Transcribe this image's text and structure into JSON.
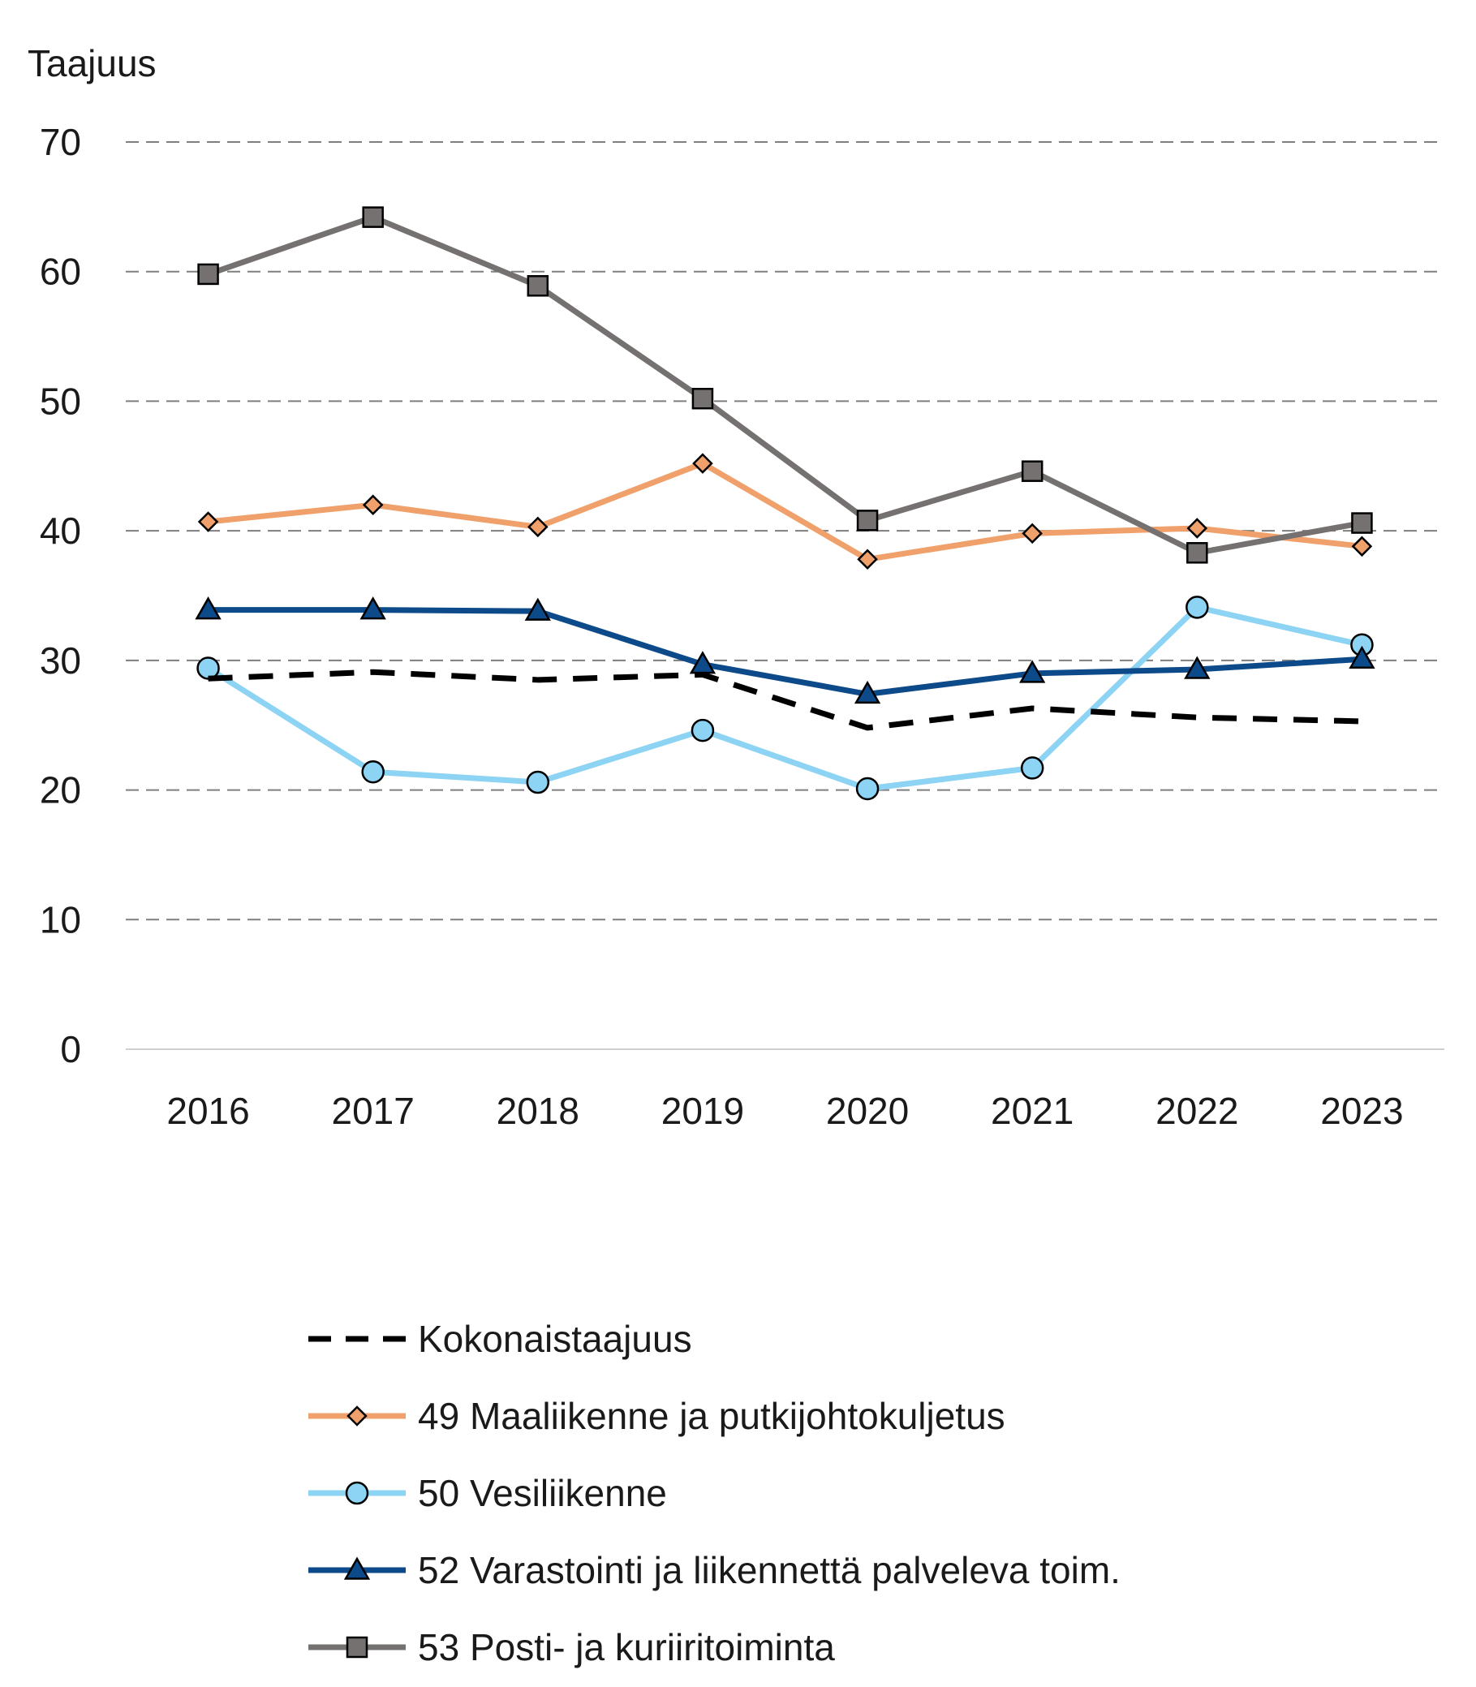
{
  "chart_data": {
    "type": "line",
    "title": "",
    "ylabel": "Taajuus",
    "xlabel": "",
    "ylim": [
      0,
      70
    ],
    "yticks": [
      0,
      10,
      20,
      30,
      40,
      50,
      60,
      70
    ],
    "grid": "horizontal-dashed",
    "legend_position": "bottom",
    "x": [
      "2016",
      "2017",
      "2018",
      "2019",
      "2020",
      "2021",
      "2022",
      "2023"
    ],
    "series": [
      {
        "name": "Kokonaistaajuus",
        "values": [
          28.6,
          29.1,
          28.5,
          28.9,
          24.8,
          26.3,
          25.6,
          25.3
        ],
        "color": "#000000",
        "style": "dashed",
        "marker": "none"
      },
      {
        "name": "49 Maaliikenne ja putkijohtokuljetus",
        "values": [
          40.7,
          42.0,
          40.3,
          45.2,
          37.8,
          39.8,
          40.2,
          38.8
        ],
        "color": "#f0a06a",
        "style": "solid",
        "marker": "diamond"
      },
      {
        "name": "50 Vesiliikenne",
        "values": [
          29.4,
          21.4,
          20.6,
          24.6,
          20.1,
          21.7,
          34.1,
          31.2
        ],
        "color": "#8dd3f3",
        "style": "solid",
        "marker": "circle"
      },
      {
        "name": "52 Varastointi ja liikennettä palveleva toim.",
        "values": [
          33.9,
          33.9,
          33.8,
          29.7,
          27.4,
          29.0,
          29.3,
          30.1
        ],
        "color": "#0d4a8a",
        "style": "solid",
        "marker": "triangle"
      },
      {
        "name": "53 Posti- ja kuriiritoiminta",
        "values": [
          59.8,
          64.2,
          58.9,
          50.2,
          40.8,
          44.6,
          38.3,
          40.6
        ],
        "color": "#767171",
        "style": "solid",
        "marker": "square"
      }
    ]
  }
}
